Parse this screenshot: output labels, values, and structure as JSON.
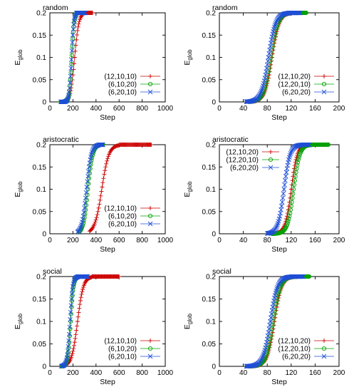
{
  "chart_data": [
    {
      "type": "line",
      "title": "random",
      "xlabel": "Step",
      "ylabel": "E",
      "ylabel_sub": "glob",
      "xlim": [
        0,
        1000
      ],
      "ylim": [
        0,
        0.2
      ],
      "xticks": [
        0,
        200,
        400,
        600,
        800,
        1000
      ],
      "xtick_labels": [
        "0",
        "200",
        "400",
        "600",
        "800",
        "1000"
      ],
      "yticks": [
        0,
        0.05,
        0.1,
        0.15,
        0.2
      ],
      "ytick_labels": [
        "0",
        "0.05",
        "0.1",
        "0.15",
        "0.2"
      ],
      "legend_position": "bottom-right",
      "series": [
        {
          "name": "(12,10,10)",
          "color": "#cc0000",
          "marker": "plus",
          "x0": 120,
          "x_end": 280,
          "t_mid": 215,
          "width": 18,
          "x_last": 370,
          "step": 5
        },
        {
          "name": "(6,10,20)",
          "color": "#00a000",
          "marker": "circle",
          "x0": 95,
          "x_end": 230,
          "t_mid": 190,
          "width": 10,
          "x_last": 270,
          "step": 4
        },
        {
          "name": "(6,20,10)",
          "color": "#1f4fd6",
          "marker": "cross",
          "x0": 95,
          "x_end": 230,
          "t_mid": 188,
          "width": 10,
          "x_last": 310,
          "step": 4
        }
      ]
    },
    {
      "type": "line",
      "title": "random",
      "xlabel": "Step",
      "ylabel": "E",
      "ylabel_sub": "glob",
      "xlim": [
        0,
        200
      ],
      "ylim": [
        0,
        0.2
      ],
      "xticks": [
        0,
        40,
        80,
        120,
        160,
        200
      ],
      "xtick_labels": [
        "0",
        "40",
        "80",
        "120",
        "160",
        "200"
      ],
      "yticks": [
        0,
        0.05,
        0.1,
        0.15,
        0.2
      ],
      "ytick_labels": [
        "0",
        "0.05",
        "0.1",
        "0.15",
        "0.2"
      ],
      "legend_position": "bottom-right",
      "series": [
        {
          "name": "(12,10,20)",
          "color": "#cc0000",
          "marker": "plus",
          "x0": 52,
          "x_end": 120,
          "t_mid": 88,
          "width": 6,
          "x_last": 140,
          "step": 1
        },
        {
          "name": "(12,20,10)",
          "color": "#00a000",
          "marker": "circle",
          "x0": 50,
          "x_end": 120,
          "t_mid": 86,
          "width": 6,
          "x_last": 145,
          "step": 1
        },
        {
          "name": "(6,20,20)",
          "color": "#1f4fd6",
          "marker": "cross",
          "x0": 45,
          "x_end": 115,
          "t_mid": 82,
          "width": 6,
          "x_last": 135,
          "step": 1
        }
      ]
    },
    {
      "type": "line",
      "title": "aristocratic",
      "xlabel": "Step",
      "ylabel": "E",
      "ylabel_sub": "glob",
      "xlim": [
        0,
        1000
      ],
      "ylim": [
        0,
        0.2
      ],
      "xticks": [
        0,
        200,
        400,
        600,
        800,
        1000
      ],
      "xtick_labels": [
        "0",
        "200",
        "400",
        "600",
        "800",
        "1000"
      ],
      "yticks": [
        0,
        0.05,
        0.1,
        0.15,
        0.2
      ],
      "ytick_labels": [
        "0",
        "0.05",
        "0.1",
        "0.15",
        "0.2"
      ],
      "legend_position": "bottom-right",
      "series": [
        {
          "name": "(12,10,10)",
          "color": "#cc0000",
          "marker": "plus",
          "x0": 345,
          "x_end": 600,
          "t_mid": 450,
          "width": 30,
          "x_last": 880,
          "step": 6
        },
        {
          "name": "(6,10,20)",
          "color": "#00a000",
          "marker": "circle",
          "x0": 255,
          "x_end": 420,
          "t_mid": 330,
          "width": 20,
          "x_last": 460,
          "step": 5
        },
        {
          "name": "(6,20,10)",
          "color": "#1f4fd6",
          "marker": "cross",
          "x0": 240,
          "x_end": 420,
          "t_mid": 318,
          "width": 20,
          "x_last": 460,
          "step": 5
        }
      ]
    },
    {
      "type": "line",
      "title": "aristocratic",
      "xlabel": "Step",
      "ylabel": "E",
      "ylabel_sub": "glob",
      "xlim": [
        0,
        200
      ],
      "ylim": [
        0,
        0.2
      ],
      "xticks": [
        0,
        40,
        80,
        120,
        160,
        200
      ],
      "xtick_labels": [
        "0",
        "40",
        "80",
        "120",
        "160",
        "200"
      ],
      "yticks": [
        0,
        0.05,
        0.1,
        0.15,
        0.2
      ],
      "ytick_labels": [
        "0",
        "0.05",
        "0.1",
        "0.15",
        "0.2"
      ],
      "legend_position": "top-left",
      "series": [
        {
          "name": "(12,10,20)",
          "color": "#cc0000",
          "marker": "plus",
          "x0": 88,
          "x_end": 150,
          "t_mid": 120,
          "width": 5,
          "x_last": 170,
          "step": 1
        },
        {
          "name": "(12,20,10)",
          "color": "#00a000",
          "marker": "circle",
          "x0": 88,
          "x_end": 155,
          "t_mid": 124,
          "width": 5,
          "x_last": 182,
          "step": 1
        },
        {
          "name": "(6,20,20)",
          "color": "#1f4fd6",
          "marker": "cross",
          "x0": 80,
          "x_end": 140,
          "t_mid": 108,
          "width": 5,
          "x_last": 150,
          "step": 1
        }
      ]
    },
    {
      "type": "line",
      "title": "social",
      "xlabel": "Step",
      "ylabel": "E",
      "ylabel_sub": "glob",
      "xlim": [
        0,
        1000
      ],
      "ylim": [
        0,
        0.2
      ],
      "xticks": [
        0,
        200,
        400,
        600,
        800,
        1000
      ],
      "xtick_labels": [
        "0",
        "200",
        "400",
        "600",
        "800",
        "1000"
      ],
      "yticks": [
        0,
        0.05,
        0.1,
        0.15,
        0.2
      ],
      "ytick_labels": [
        "0",
        "0.05",
        "0.1",
        "0.15",
        "0.2"
      ],
      "legend_position": "bottom-right",
      "series": [
        {
          "name": "(12,10,10)",
          "color": "#cc0000",
          "marker": "plus",
          "x0": 140,
          "x_end": 360,
          "t_mid": 240,
          "width": 25,
          "x_last": 600,
          "step": 5
        },
        {
          "name": "(6,10,20)",
          "color": "#00a000",
          "marker": "circle",
          "x0": 100,
          "x_end": 240,
          "t_mid": 180,
          "width": 12,
          "x_last": 310,
          "step": 4
        },
        {
          "name": "(6,20,10)",
          "color": "#1f4fd6",
          "marker": "cross",
          "x0": 100,
          "x_end": 240,
          "t_mid": 175,
          "width": 12,
          "x_last": 330,
          "step": 4
        }
      ]
    },
    {
      "type": "line",
      "title": "social",
      "xlabel": "Step",
      "ylabel": "E",
      "ylabel_sub": "glob",
      "xlim": [
        0,
        200
      ],
      "ylim": [
        0,
        0.2
      ],
      "xticks": [
        0,
        40,
        80,
        120,
        160,
        200
      ],
      "xtick_labels": [
        "0",
        "40",
        "80",
        "120",
        "160",
        "200"
      ],
      "yticks": [
        0,
        0.05,
        0.1,
        0.15,
        0.2
      ],
      "ytick_labels": [
        "0",
        "0.05",
        "0.1",
        "0.15",
        "0.2"
      ],
      "legend_position": "bottom-right",
      "series": [
        {
          "name": "(12,10,20)",
          "color": "#cc0000",
          "marker": "plus",
          "x0": 55,
          "x_end": 130,
          "t_mid": 92,
          "width": 6,
          "x_last": 140,
          "step": 1
        },
        {
          "name": "(12,20,10)",
          "color": "#00a000",
          "marker": "circle",
          "x0": 50,
          "x_end": 130,
          "t_mid": 90,
          "width": 6,
          "x_last": 150,
          "step": 1
        },
        {
          "name": "(6,20,20)",
          "color": "#1f4fd6",
          "marker": "cross",
          "x0": 45,
          "x_end": 120,
          "t_mid": 85,
          "width": 6,
          "x_last": 140,
          "step": 1
        }
      ]
    }
  ]
}
